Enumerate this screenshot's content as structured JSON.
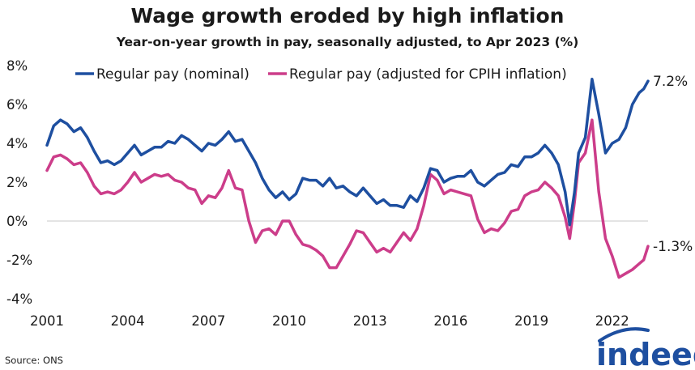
{
  "source": "Source: ONS",
  "logo": {
    "text": "indeed",
    "color": "#1e4fa0",
    "arc_color": "#1e4fa0"
  },
  "chart_data": {
    "type": "line",
    "title": "Wage growth eroded by high inflation",
    "subtitle": "Year-on-year growth in pay, seasonally adjusted, to Apr 2023 (%)",
    "xlabel": "",
    "ylabel": "",
    "xlim": [
      2001.0,
      2023.33
    ],
    "ylim": [
      -4,
      8
    ],
    "x_ticks": [
      {
        "value": 2001,
        "label": "2001"
      },
      {
        "value": 2004,
        "label": "2004"
      },
      {
        "value": 2007,
        "label": "2007"
      },
      {
        "value": 2010,
        "label": "2010"
      },
      {
        "value": 2013,
        "label": "2013"
      },
      {
        "value": 2016,
        "label": "2016"
      },
      {
        "value": 2019,
        "label": "2019"
      },
      {
        "value": 2022,
        "label": "2022"
      }
    ],
    "y_ticks": [
      {
        "value": 8,
        "label": "8%"
      },
      {
        "value": 6,
        "label": "6%"
      },
      {
        "value": 4,
        "label": "4%"
      },
      {
        "value": 2,
        "label": "2%"
      },
      {
        "value": 0,
        "label": "0%"
      },
      {
        "value": -2,
        "label": "-2%"
      },
      {
        "value": -4,
        "label": "-4%"
      }
    ],
    "grid": false,
    "zero_line": true,
    "legend_position": "top",
    "series": [
      {
        "name": "Regular pay (nominal)",
        "color": "#1e4fa0",
        "end_label": "7.2%",
        "points": [
          [
            2001.0,
            3.9
          ],
          [
            2001.25,
            4.9
          ],
          [
            2001.5,
            5.2
          ],
          [
            2001.75,
            5.0
          ],
          [
            2002.0,
            4.6
          ],
          [
            2002.25,
            4.8
          ],
          [
            2002.5,
            4.3
          ],
          [
            2002.75,
            3.6
          ],
          [
            2003.0,
            3.0
          ],
          [
            2003.25,
            3.1
          ],
          [
            2003.5,
            2.9
          ],
          [
            2003.75,
            3.1
          ],
          [
            2004.0,
            3.5
          ],
          [
            2004.25,
            3.9
          ],
          [
            2004.5,
            3.4
          ],
          [
            2004.75,
            3.6
          ],
          [
            2005.0,
            3.8
          ],
          [
            2005.25,
            3.8
          ],
          [
            2005.5,
            4.1
          ],
          [
            2005.75,
            4.0
          ],
          [
            2006.0,
            4.4
          ],
          [
            2006.25,
            4.2
          ],
          [
            2006.5,
            3.9
          ],
          [
            2006.75,
            3.6
          ],
          [
            2007.0,
            4.0
          ],
          [
            2007.25,
            3.9
          ],
          [
            2007.5,
            4.2
          ],
          [
            2007.75,
            4.6
          ],
          [
            2008.0,
            4.1
          ],
          [
            2008.25,
            4.2
          ],
          [
            2008.5,
            3.6
          ],
          [
            2008.75,
            3.0
          ],
          [
            2009.0,
            2.2
          ],
          [
            2009.25,
            1.6
          ],
          [
            2009.5,
            1.2
          ],
          [
            2009.75,
            1.5
          ],
          [
            2010.0,
            1.1
          ],
          [
            2010.25,
            1.4
          ],
          [
            2010.5,
            2.2
          ],
          [
            2010.75,
            2.1
          ],
          [
            2011.0,
            2.1
          ],
          [
            2011.25,
            1.8
          ],
          [
            2011.5,
            2.2
          ],
          [
            2011.75,
            1.7
          ],
          [
            2012.0,
            1.8
          ],
          [
            2012.25,
            1.5
          ],
          [
            2012.5,
            1.3
          ],
          [
            2012.75,
            1.7
          ],
          [
            2013.0,
            1.3
          ],
          [
            2013.25,
            0.9
          ],
          [
            2013.5,
            1.1
          ],
          [
            2013.75,
            0.8
          ],
          [
            2014.0,
            0.8
          ],
          [
            2014.25,
            0.7
          ],
          [
            2014.5,
            1.3
          ],
          [
            2014.75,
            1.0
          ],
          [
            2015.0,
            1.7
          ],
          [
            2015.25,
            2.7
          ],
          [
            2015.5,
            2.6
          ],
          [
            2015.75,
            2.0
          ],
          [
            2016.0,
            2.2
          ],
          [
            2016.25,
            2.3
          ],
          [
            2016.5,
            2.3
          ],
          [
            2016.75,
            2.6
          ],
          [
            2017.0,
            2.0
          ],
          [
            2017.25,
            1.8
          ],
          [
            2017.5,
            2.1
          ],
          [
            2017.75,
            2.4
          ],
          [
            2018.0,
            2.5
          ],
          [
            2018.25,
            2.9
          ],
          [
            2018.5,
            2.8
          ],
          [
            2018.75,
            3.3
          ],
          [
            2019.0,
            3.3
          ],
          [
            2019.25,
            3.5
          ],
          [
            2019.5,
            3.9
          ],
          [
            2019.75,
            3.5
          ],
          [
            2020.0,
            2.9
          ],
          [
            2020.25,
            1.5
          ],
          [
            2020.42,
            -0.2
          ],
          [
            2020.6,
            1.5
          ],
          [
            2020.75,
            3.5
          ],
          [
            2021.0,
            4.3
          ],
          [
            2021.25,
            7.3
          ],
          [
            2021.5,
            5.5
          ],
          [
            2021.75,
            3.5
          ],
          [
            2022.0,
            4.0
          ],
          [
            2022.25,
            4.2
          ],
          [
            2022.5,
            4.8
          ],
          [
            2022.75,
            6.0
          ],
          [
            2023.0,
            6.6
          ],
          [
            2023.17,
            6.8
          ],
          [
            2023.33,
            7.2
          ]
        ]
      },
      {
        "name": "Regular pay (adjusted for CPIH inflation)",
        "color": "#cc3d8a",
        "end_label": "-1.3%",
        "points": [
          [
            2001.0,
            2.6
          ],
          [
            2001.25,
            3.3
          ],
          [
            2001.5,
            3.4
          ],
          [
            2001.75,
            3.2
          ],
          [
            2002.0,
            2.9
          ],
          [
            2002.25,
            3.0
          ],
          [
            2002.5,
            2.5
          ],
          [
            2002.75,
            1.8
          ],
          [
            2003.0,
            1.4
          ],
          [
            2003.25,
            1.5
          ],
          [
            2003.5,
            1.4
          ],
          [
            2003.75,
            1.6
          ],
          [
            2004.0,
            2.0
          ],
          [
            2004.25,
            2.5
          ],
          [
            2004.5,
            2.0
          ],
          [
            2004.75,
            2.2
          ],
          [
            2005.0,
            2.4
          ],
          [
            2005.25,
            2.3
          ],
          [
            2005.5,
            2.4
          ],
          [
            2005.75,
            2.1
          ],
          [
            2006.0,
            2.0
          ],
          [
            2006.25,
            1.7
          ],
          [
            2006.5,
            1.6
          ],
          [
            2006.75,
            0.9
          ],
          [
            2007.0,
            1.3
          ],
          [
            2007.25,
            1.2
          ],
          [
            2007.5,
            1.7
          ],
          [
            2007.75,
            2.6
          ],
          [
            2008.0,
            1.7
          ],
          [
            2008.25,
            1.6
          ],
          [
            2008.5,
            0.0
          ],
          [
            2008.75,
            -1.1
          ],
          [
            2009.0,
            -0.5
          ],
          [
            2009.25,
            -0.4
          ],
          [
            2009.5,
            -0.7
          ],
          [
            2009.75,
            0.0
          ],
          [
            2010.0,
            0.0
          ],
          [
            2010.25,
            -0.7
          ],
          [
            2010.5,
            -1.2
          ],
          [
            2010.75,
            -1.3
          ],
          [
            2011.0,
            -1.5
          ],
          [
            2011.25,
            -1.8
          ],
          [
            2011.5,
            -2.4
          ],
          [
            2011.75,
            -2.4
          ],
          [
            2012.0,
            -1.8
          ],
          [
            2012.25,
            -1.2
          ],
          [
            2012.5,
            -0.5
          ],
          [
            2012.75,
            -0.6
          ],
          [
            2013.0,
            -1.1
          ],
          [
            2013.25,
            -1.6
          ],
          [
            2013.5,
            -1.4
          ],
          [
            2013.75,
            -1.6
          ],
          [
            2014.0,
            -1.1
          ],
          [
            2014.25,
            -0.6
          ],
          [
            2014.5,
            -1.0
          ],
          [
            2014.75,
            -0.4
          ],
          [
            2015.0,
            0.8
          ],
          [
            2015.25,
            2.4
          ],
          [
            2015.5,
            2.1
          ],
          [
            2015.75,
            1.4
          ],
          [
            2016.0,
            1.6
          ],
          [
            2016.25,
            1.5
          ],
          [
            2016.5,
            1.4
          ],
          [
            2016.75,
            1.3
          ],
          [
            2017.0,
            0.1
          ],
          [
            2017.25,
            -0.6
          ],
          [
            2017.5,
            -0.4
          ],
          [
            2017.75,
            -0.5
          ],
          [
            2018.0,
            -0.1
          ],
          [
            2018.25,
            0.5
          ],
          [
            2018.5,
            0.6
          ],
          [
            2018.75,
            1.3
          ],
          [
            2019.0,
            1.5
          ],
          [
            2019.25,
            1.6
          ],
          [
            2019.5,
            2.0
          ],
          [
            2019.75,
            1.7
          ],
          [
            2020.0,
            1.3
          ],
          [
            2020.25,
            0.2
          ],
          [
            2020.42,
            -0.9
          ],
          [
            2020.6,
            1.0
          ],
          [
            2020.75,
            3.0
          ],
          [
            2021.0,
            3.5
          ],
          [
            2021.25,
            5.2
          ],
          [
            2021.5,
            1.5
          ],
          [
            2021.75,
            -0.9
          ],
          [
            2022.0,
            -1.8
          ],
          [
            2022.25,
            -2.9
          ],
          [
            2022.5,
            -2.7
          ],
          [
            2022.75,
            -2.5
          ],
          [
            2023.0,
            -2.2
          ],
          [
            2023.17,
            -2.0
          ],
          [
            2023.33,
            -1.3
          ]
        ]
      }
    ]
  }
}
